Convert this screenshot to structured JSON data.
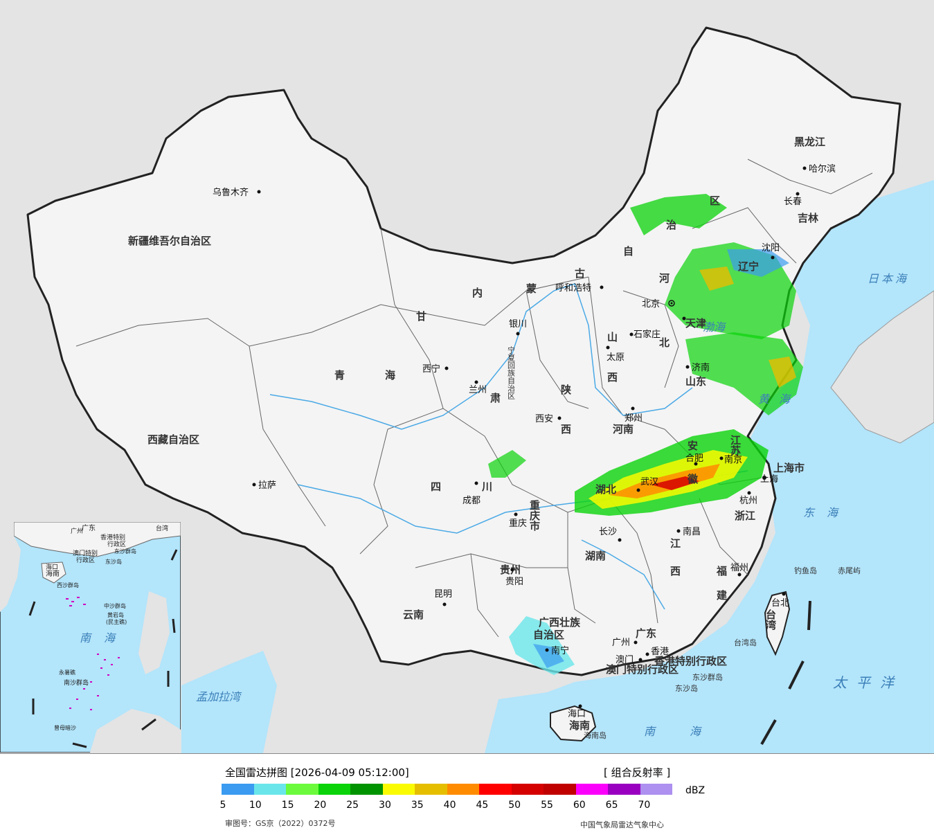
{
  "colors": {
    "ocean": "#b3e5fb",
    "land_china": "#f4f4f4",
    "land_other": "#e4e4e4",
    "border": "#222222",
    "river": "#4aa9e6"
  },
  "provinces": {
    "xinjiang": "新疆维吾尔自治区",
    "xizang": "西藏自治区",
    "qinghai1": "青",
    "qinghai2": "海",
    "gansu": "甘",
    "neimenggu": [
      "内",
      "蒙",
      "古",
      "自",
      "治",
      "区"
    ],
    "heilongjiang": "黑龙江",
    "jilin": "吉林",
    "liaoning": "辽宁",
    "hebei1": "河",
    "hebei2": "北",
    "shanxi1": "山",
    "shanxi2": "西",
    "shaanxi1": "陕",
    "shaanxi2": "西",
    "shandong": "山东",
    "henan": "河南",
    "jiangsu": "江苏",
    "anhui1": "安",
    "anhui2": "徽",
    "shanghai": "上海市",
    "zhejiang": "浙江",
    "hubei": "湖北",
    "hunan": "湖南",
    "jiangxi1": "江",
    "jiangxi2": "西",
    "fujian1": "福",
    "fujian2": "建",
    "sichuan1": "四",
    "sichuan2": "川",
    "chongqing": "重庆市",
    "guizhou": "贵州",
    "yunnan": "云南",
    "guangxi1": "广西壮族",
    "guangxi2": "自治区",
    "guangdong": "广东",
    "hainan": "海南",
    "taiwan": "台湾",
    "ningxia": "宁夏回族自治区",
    "gansu2": "肃",
    "tianjin": "天津",
    "hk": "香港特别行政区",
    "macau": "澳门特别行政区"
  },
  "cities": {
    "urumqi": "乌鲁木齐",
    "lhasa": "拉萨",
    "xining": "西宁",
    "lanzhou": "兰州",
    "yinchuan": "银川",
    "hohhot": "呼和浩特",
    "beijing": "北京",
    "tianjin": "天津",
    "shijiazhuang": "石家庄",
    "taiyuan": "太原",
    "jinan": "济南",
    "zhengzhou": "郑州",
    "xian": "西安",
    "chengdu": "成都",
    "chongqing": "重庆",
    "wuhan": "武汉",
    "hefei": "合肥",
    "nanjing": "南京",
    "shanghai": "上海",
    "hangzhou": "杭州",
    "nanchang": "南昌",
    "changsha": "长沙",
    "guiyang": "贵阳",
    "kunming": "昆明",
    "nanning": "南宁",
    "guangzhou": "广州",
    "hongkong": "香港",
    "macau": "澳门",
    "fuzhou": "福州",
    "taibei": "台北",
    "haikou": "海口",
    "shenyang": "沈阳",
    "changchun": "长春",
    "harbin": "哈尔滨"
  },
  "islands": {
    "diaoyu": "钓鱼岛",
    "chiwei": "赤尾屿",
    "dongsha_islands": "东沙群岛",
    "dongsha": "东沙岛",
    "hainan_island": "海南岛",
    "taiwan_island": "台湾岛"
  },
  "seas": {
    "japan": "日本海",
    "bohai": "渤海",
    "yellow": "黄海",
    "east": "东海",
    "pacific": "太平洋",
    "south": "南海",
    "bengal": "孟加拉湾"
  },
  "inset": {
    "south_sea1": "南",
    "south_sea2": "海",
    "zhongsha": "中沙群岛",
    "huangyan": "黄岩岛",
    "huangyan2": "(民主礁)",
    "nansha": "南沙群岛",
    "xisha": "西沙群岛",
    "yongshu": "永暑礁",
    "zengmu": "曾母暗沙",
    "haikou": "海口",
    "hainan": "海南",
    "guangzhou": "广州",
    "guangdong": "广东",
    "taiwan": "台湾",
    "hk": "香港特别",
    "hk2": "行政区",
    "macau": "澳门特别",
    "macau2": "行政区",
    "dongsha": "东沙群岛",
    "dongsha2": "东沙岛"
  },
  "legend": {
    "title": "全国雷达拼图 [2026-04-09 05:12:00]",
    "product": "[ 组合反射率 ]",
    "unit": "dBZ",
    "ticks": [
      "5",
      "10",
      "15",
      "20",
      "25",
      "30",
      "35",
      "40",
      "45",
      "50",
      "55",
      "60",
      "65",
      "70"
    ],
    "colors": [
      "#3a9bf0",
      "#6ae6ea",
      "#6cfa3c",
      "#0ad30a",
      "#009300",
      "#fafa00",
      "#e6be00",
      "#ff8c00",
      "#ff0000",
      "#d50000",
      "#c00000",
      "#fb00fb",
      "#9a00c0",
      "#ad90f0"
    ],
    "approval": "审图号：GS京（2022）0372号",
    "source": "中国气象局雷达气象中心"
  }
}
